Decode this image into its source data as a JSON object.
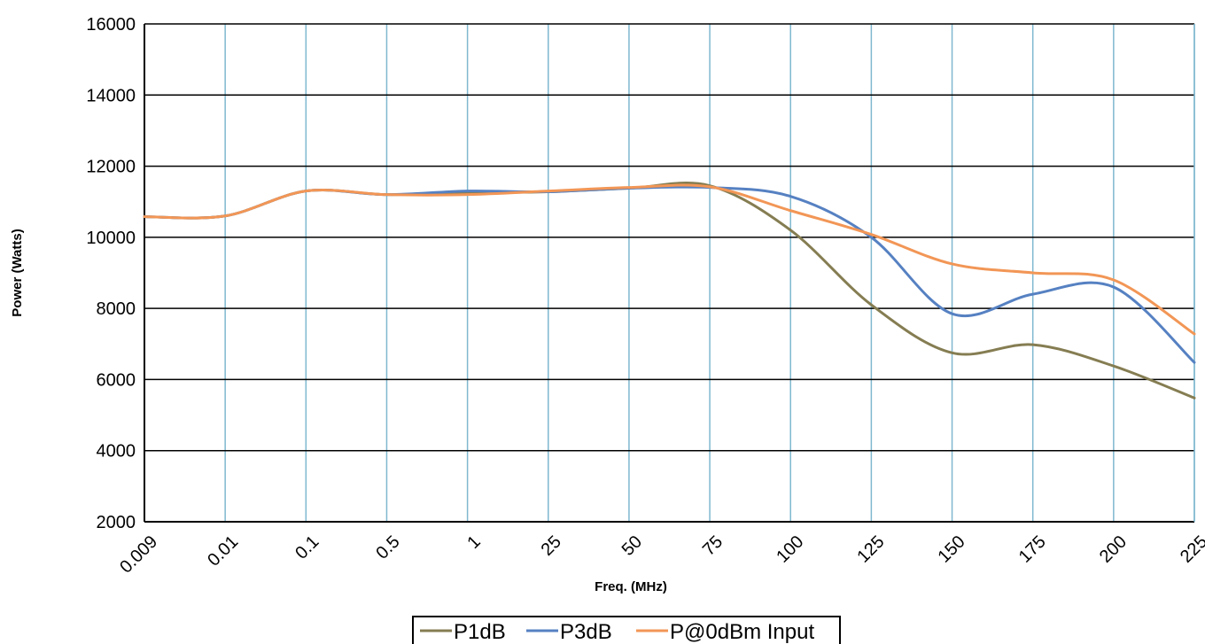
{
  "chart_data": {
    "type": "line",
    "title": "",
    "xlabel": "Freq. (MHz)",
    "ylabel": "Power (Watts)",
    "categories": [
      "0.009",
      "0.01",
      "0.1",
      "0.5",
      "1",
      "25",
      "50",
      "75",
      "100",
      "125",
      "150",
      "175",
      "200",
      "225"
    ],
    "ylim": [
      2000,
      16000
    ],
    "yticks": [
      2000,
      4000,
      6000,
      8000,
      10000,
      12000,
      14000,
      16000
    ],
    "grid": "horizontal black lines and vertical light-blue lines",
    "legend_position": "bottom",
    "series": [
      {
        "name": "P1dB",
        "color": "#857d52",
        "values": [
          10580,
          10600,
          11300,
          11200,
          11250,
          11280,
          11380,
          11450,
          10200,
          8100,
          6750,
          6980,
          6380,
          5480
        ]
      },
      {
        "name": "P3dB",
        "color": "#5681c2",
        "values": [
          10580,
          10600,
          11300,
          11200,
          11300,
          11280,
          11380,
          11400,
          11150,
          10000,
          7850,
          8400,
          8600,
          6480
        ]
      },
      {
        "name": "P@0dBm Input",
        "color": "#f29656",
        "values": [
          10580,
          10600,
          11300,
          11200,
          11200,
          11300,
          11400,
          11420,
          10750,
          10080,
          9250,
          9000,
          8800,
          7280
        ]
      }
    ]
  }
}
